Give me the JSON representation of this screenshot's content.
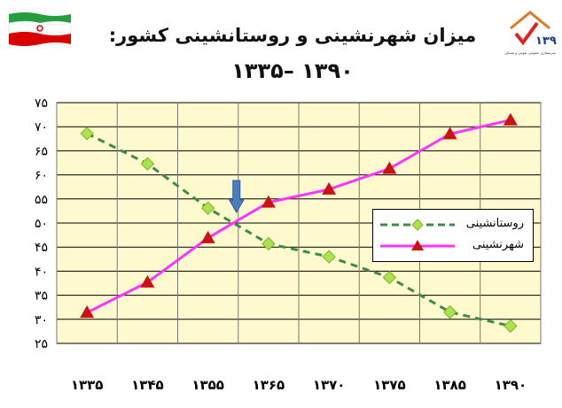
{
  "header": {
    "title_line1": "میزان شهرنشینی و روستانشینی کشور:",
    "title_line2": "۱۳۹۰ –۱۳۳۵"
  },
  "branding": {
    "flag_icon": "iran-flag-icon",
    "logo_icon": "census-1390-logo-icon",
    "logo_text": "۱۳۹۰",
    "logo_caption": "سرشماری عمومی نفوس و مسکن"
  },
  "colors": {
    "plot_bg": "#FFFACD",
    "rural": "#3C8C44",
    "rural_marker": "#A8E44A",
    "urban": "#FF33FF",
    "urban_marker": "#CC1111",
    "arrow": "#4A7EC0"
  },
  "chart_data": {
    "type": "line",
    "categories": [
      "۱۳۳۵",
      "۱۳۴۵",
      "۱۳۵۵",
      "۱۳۶۵",
      "۱۳۷۰",
      "۱۳۷۵",
      "۱۳۸۵",
      "۱۳۹۰"
    ],
    "series": [
      {
        "name": "روستانشینی",
        "values": [
          68.6,
          62.3,
          53.1,
          45.7,
          43.0,
          38.7,
          31.5,
          28.6
        ],
        "style": "dashed",
        "marker": "diamond"
      },
      {
        "name": "شهرنشینی",
        "values": [
          31.4,
          37.7,
          46.9,
          54.3,
          57.0,
          61.3,
          68.5,
          71.4
        ],
        "style": "solid",
        "marker": "triangle"
      }
    ],
    "yticks": [
      "۲۵",
      "۳۰",
      "۳۵",
      "۴۰",
      "۴۵",
      "۵۰",
      "۵۵",
      "۶۰",
      "۶۵",
      "۷۰",
      "۷۵"
    ],
    "ylim": [
      25,
      75
    ],
    "grid": true,
    "legend_position": "right",
    "annotation": "down-arrow at crossover between ۱۳۵۵ and ۱۳۶۵"
  }
}
